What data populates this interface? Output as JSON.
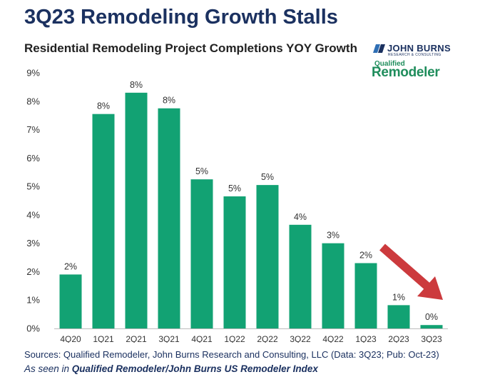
{
  "header": {
    "title": "3Q23 Remodeling Growth Stalls",
    "subtitle": "Residential Remodeling Project Completions YOY Growth"
  },
  "logos": {
    "john_burns": "JOHN BURNS",
    "john_burns_tagline": "RESEARCH & CONSULTING",
    "qualified": "Qualified",
    "remodeler": "Remodeler"
  },
  "footer": {
    "sources": "Sources: Qualified Remodeler, John Burns Research and Consulting, LLC (Data: 3Q23; Pub: Oct-23)",
    "seen_prefix": "As seen in ",
    "seen_title": "Qualified Remodeler/John Burns US Remodeler Index"
  },
  "colors": {
    "bar": "#12a273",
    "arrow": "#cc3a3d",
    "title": "#1b3160"
  },
  "chart_data": {
    "type": "bar",
    "categories": [
      "4Q20",
      "1Q21",
      "2Q21",
      "3Q21",
      "4Q21",
      "1Q22",
      "2Q22",
      "3Q22",
      "4Q22",
      "1Q23",
      "2Q23",
      "3Q23"
    ],
    "values": [
      1.9,
      7.55,
      8.3,
      7.75,
      5.25,
      4.65,
      5.05,
      3.65,
      3.0,
      2.3,
      0.82,
      0.12
    ],
    "data_labels": [
      "2%",
      "8%",
      "8%",
      "8%",
      "5%",
      "5%",
      "5%",
      "4%",
      "3%",
      "2%",
      "1%",
      "0%"
    ],
    "y_ticks": [
      "0%",
      "1%",
      "2%",
      "3%",
      "4%",
      "5%",
      "6%",
      "7%",
      "8%",
      "9%"
    ],
    "ylim": [
      0,
      9
    ],
    "grid": false,
    "legend": "none",
    "annotation": "red downward arrow pointing at 3Q23"
  }
}
